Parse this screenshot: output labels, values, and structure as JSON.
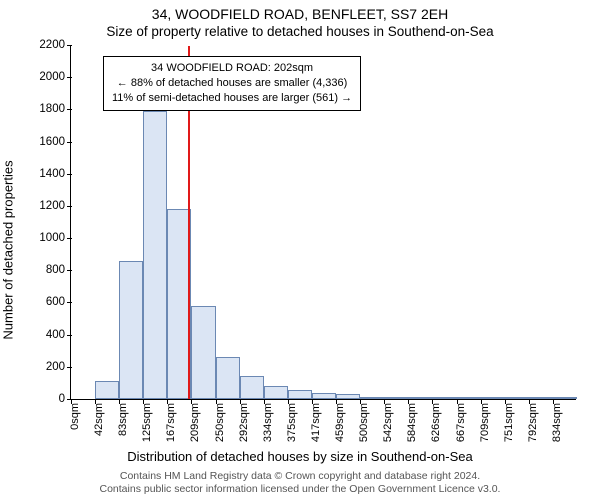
{
  "title_line1": "34, WOODFIELD ROAD, BENFLEET, SS7 2EH",
  "title_line2": "Size of property relative to detached houses in Southend-on-Sea",
  "ylabel": "Number of detached properties",
  "xlabel": "Distribution of detached houses by size in Southend-on-Sea",
  "footer_line1": "Contains HM Land Registry data © Crown copyright and database right 2024.",
  "footer_line2": "Contains public sector information licensed under the Open Government Licence v3.0.",
  "chart": {
    "type": "histogram",
    "background_color": "#ffffff",
    "axis_color": "#000000",
    "bar_fill": "#dbe5f4",
    "bar_border": "#6b88b3",
    "reference_line_color": "#e11919",
    "reference_value_sqm": 202,
    "y": {
      "min": 0,
      "max": 2200,
      "step": 200
    },
    "bars": [
      {
        "x_label": "0sqm",
        "value": 0
      },
      {
        "x_label": "42sqm",
        "value": 110
      },
      {
        "x_label": "83sqm",
        "value": 855
      },
      {
        "x_label": "125sqm",
        "value": 1790
      },
      {
        "x_label": "167sqm",
        "value": 1180
      },
      {
        "x_label": "209sqm",
        "value": 580
      },
      {
        "x_label": "250sqm",
        "value": 260
      },
      {
        "x_label": "292sqm",
        "value": 140
      },
      {
        "x_label": "334sqm",
        "value": 80
      },
      {
        "x_label": "375sqm",
        "value": 55
      },
      {
        "x_label": "417sqm",
        "value": 35
      },
      {
        "x_label": "459sqm",
        "value": 30
      },
      {
        "x_label": "500sqm",
        "value": 8
      },
      {
        "x_label": "542sqm",
        "value": 5
      },
      {
        "x_label": "584sqm",
        "value": 3
      },
      {
        "x_label": "626sqm",
        "value": 3
      },
      {
        "x_label": "667sqm",
        "value": 2
      },
      {
        "x_label": "709sqm",
        "value": 2
      },
      {
        "x_label": "751sqm",
        "value": 1
      },
      {
        "x_label": "792sqm",
        "value": 1
      },
      {
        "x_label": "834sqm",
        "value": 1
      }
    ],
    "annotation": {
      "line1": "34 WOODFIELD ROAD: 202sqm",
      "line2": "← 88% of detached houses are smaller (4,336)",
      "line3": "11% of semi-detached houses are larger (561) →",
      "box_border": "#000000",
      "box_bg": "#ffffff",
      "font_size_pt": 9
    },
    "title_fontsize_pt": 11,
    "label_fontsize_pt": 10,
    "tick_fontsize_pt": 9,
    "footer_color": "#555555"
  }
}
